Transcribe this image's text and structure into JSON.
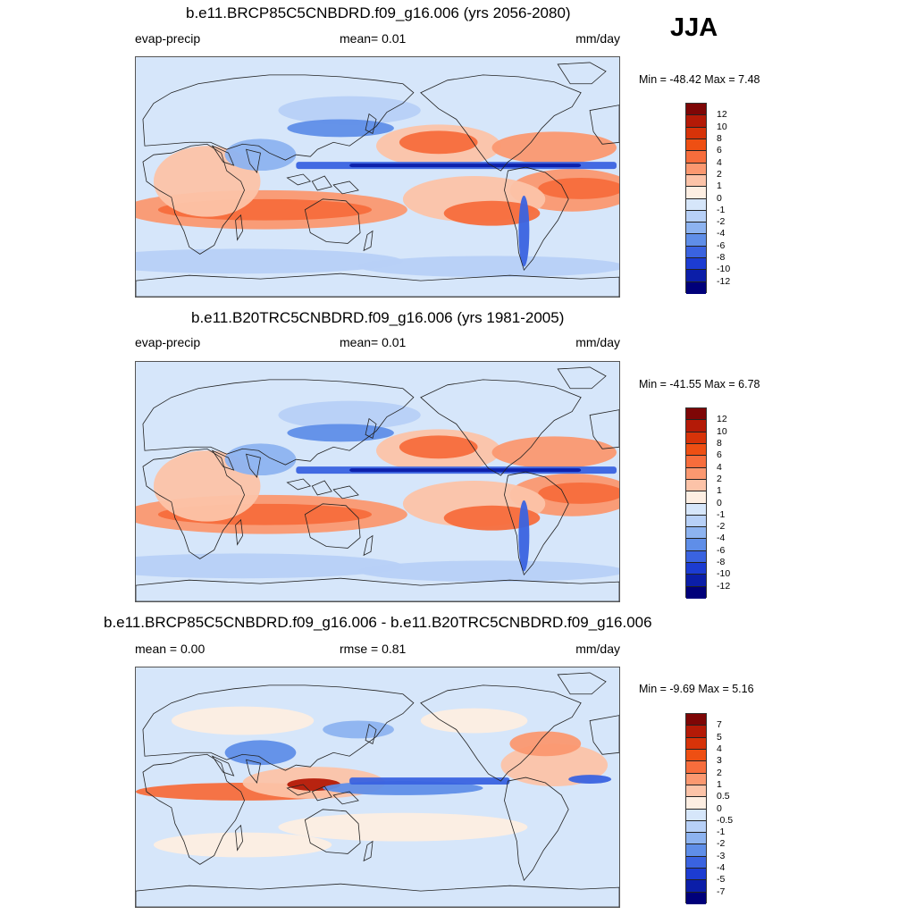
{
  "season": "JJA",
  "colors": {
    "ocean_background": "#d6e6fa",
    "coast": "#222222"
  },
  "panels": [
    {
      "title": "b.e11.BRCP85C5CNBDRD.f09_g16.006 (yrs 2056-2080)",
      "left_label": "evap-precip",
      "center_label": "mean=   0.01",
      "units": "mm/day",
      "minmax": "Min = -48.42 Max =   7.48",
      "legend_labels": [
        "12",
        "10",
        "8",
        "6",
        "4",
        "2",
        "1",
        "0",
        "-1",
        "-2",
        "-4",
        "-6",
        "-8",
        "-10",
        "-12"
      ],
      "legend_colors": [
        "#7e0606",
        "#b41a07",
        "#d73309",
        "#ee4f13",
        "#f76d3c",
        "#fb9870",
        "#fcc3a8",
        "#fdeee2",
        "#d6e6fa",
        "#b7d0f7",
        "#8db3f0",
        "#5f8ee8",
        "#3a63e0",
        "#1c3cd2",
        "#0b1ea8",
        "#00007a"
      ]
    },
    {
      "title": "b.e11.B20TRC5CNBDRD.f09_g16.006 (yrs 1981-2005)",
      "left_label": "evap-precip",
      "center_label": "mean=   0.01",
      "units": "mm/day",
      "minmax": "Min = -41.55 Max =   6.78",
      "legend_labels": [
        "12",
        "10",
        "8",
        "6",
        "4",
        "2",
        "1",
        "0",
        "-1",
        "-2",
        "-4",
        "-6",
        "-8",
        "-10",
        "-12"
      ],
      "legend_colors": [
        "#7e0606",
        "#b41a07",
        "#d73309",
        "#ee4f13",
        "#f76d3c",
        "#fb9870",
        "#fcc3a8",
        "#fdeee2",
        "#d6e6fa",
        "#b7d0f7",
        "#8db3f0",
        "#5f8ee8",
        "#3a63e0",
        "#1c3cd2",
        "#0b1ea8",
        "#00007a"
      ]
    },
    {
      "title": "b.e11.BRCP85C5CNBDRD.f09_g16.006 - b.e11.B20TRC5CNBDRD.f09_g16.006",
      "left_label": "mean =   0.00",
      "center_label": "rmse =   0.81",
      "units": "mm/day",
      "minmax": "Min =  -9.69 Max =   5.16",
      "legend_labels": [
        "7",
        "5",
        "4",
        "3",
        "2",
        "1",
        "0.5",
        "0",
        "-0.5",
        "-1",
        "-2",
        "-3",
        "-4",
        "-5",
        "-7"
      ],
      "legend_colors": [
        "#7e0606",
        "#b41a07",
        "#d73309",
        "#ee4f13",
        "#f76d3c",
        "#fb9870",
        "#fcc3a8",
        "#fdeee2",
        "#d6e6fa",
        "#b7d0f7",
        "#8db3f0",
        "#5f8ee8",
        "#3a63e0",
        "#1c3cd2",
        "#0b1ea8",
        "#00007a"
      ]
    }
  ]
}
